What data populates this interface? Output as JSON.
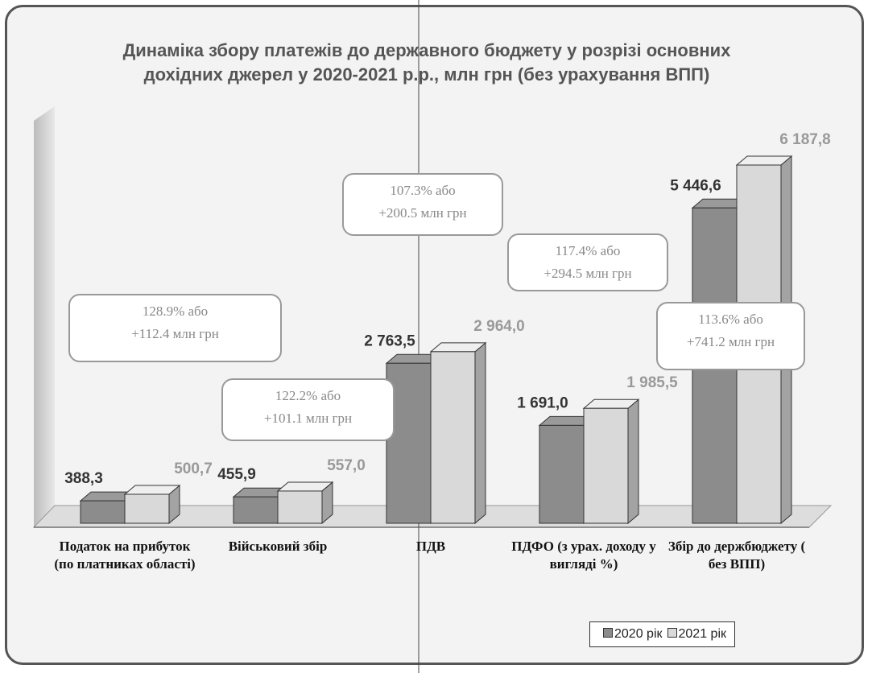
{
  "chart_data": {
    "type": "bar3d",
    "title": "Динаміка збору платежів до державного бюджету у розрізі основних дохідних джерел у 2020-2021 р.р., млн грн (без урахування ВПП)",
    "categories": [
      "Податок на прибуток (по платниках області)",
      "Військовий збір",
      "ПДВ",
      "ПДФО (з урах. доходу у вигляді %)",
      "Збір до держбюджету ( без ВПП)"
    ],
    "series": [
      {
        "name": "2020 рік",
        "color": "#8c8c8c",
        "values": [
          388.3,
          455.9,
          2763.5,
          1691.0,
          5446.6
        ],
        "value_labels": [
          "388,3",
          "455,9",
          "2 763,5",
          "1 691,0",
          "5 446,6"
        ]
      },
      {
        "name": "2021 рік",
        "color": "#d9d9d9",
        "values": [
          500.7,
          557.0,
          2964.0,
          1985.5,
          6187.8
        ],
        "value_labels": [
          "500,7",
          "557,0",
          "2 964,0",
          "1 985,5",
          "6 187,8"
        ]
      }
    ],
    "annotations": [
      [
        "128.9% або",
        "+112.4 млн грн"
      ],
      [
        "122.2% або",
        "+101.1 млн грн"
      ],
      [
        "107.3% або",
        "+200.5 млн грн"
      ],
      [
        "117.4% або",
        "+294.5 млн грн"
      ],
      [
        "113.6% або",
        "+741.2 млн грн"
      ]
    ],
    "legend": "bottom-right"
  }
}
